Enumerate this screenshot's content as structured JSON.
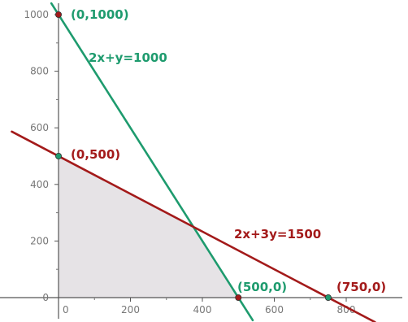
{
  "chart_data": {
    "type": "line",
    "title": "",
    "xlabel": "",
    "ylabel": "",
    "xlim": [
      -85,
      880
    ],
    "ylim": [
      -30,
      1040
    ],
    "x_ticks": [
      0,
      200,
      400,
      600,
      800
    ],
    "y_ticks": [
      0,
      200,
      400,
      600,
      800,
      1000
    ],
    "grid": false,
    "series": [
      {
        "name": "2x+y=1000",
        "color": "#1e9b6e",
        "x": [
          -20,
          540
        ],
        "y": [
          1040,
          -80
        ]
      },
      {
        "name": "2x+3y=1500",
        "color": "#a31a1a",
        "x": [
          -130,
          880
        ],
        "y": [
          586.67,
          -86.67
        ]
      }
    ],
    "feasible_region": {
      "color": "#e6e3e6",
      "x": [
        0,
        0,
        375,
        500
      ],
      "y": [
        0,
        500,
        250,
        0
      ]
    },
    "points": [
      {
        "label": "(0,1000)",
        "x": 0,
        "y": 1000,
        "color": "#a31a1a",
        "label_color": "#1e9b6e"
      },
      {
        "label": "(0,500)",
        "x": 0,
        "y": 500,
        "color": "#1e9b6e",
        "label_color": "#a31a1a"
      },
      {
        "label": "(500,0)",
        "x": 500,
        "y": 0,
        "color": "#a31a1a",
        "label_color": "#1e9b6e"
      },
      {
        "label": "(750,0)",
        "x": 750,
        "y": 0,
        "color": "#1e9b6e",
        "label_color": "#a31a1a"
      }
    ]
  }
}
